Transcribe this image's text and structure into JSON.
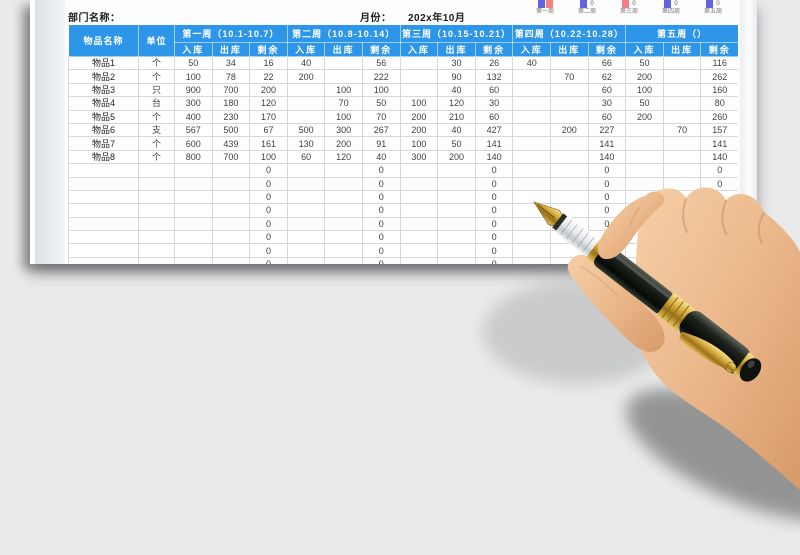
{
  "header": {
    "dept_label": "部门名称：",
    "month_label": "月份：",
    "month_value": "202x年10月"
  },
  "mini_chart": {
    "colors": {
      "blue": "#6163e2",
      "red": "#f38080"
    },
    "groups": [
      {
        "label": "第一周",
        "bars": [
          "blue",
          "red"
        ],
        "zero": ""
      },
      {
        "label": "第二周",
        "bars": [
          "blue"
        ],
        "zero": "0"
      },
      {
        "label": "第三周",
        "bars": [
          "red"
        ],
        "zero": "0"
      },
      {
        "label": "第四周",
        "bars": [
          "blue"
        ],
        "zero": "0"
      },
      {
        "label": "第五周",
        "bars": [
          "blue"
        ],
        "zero": "0"
      }
    ]
  },
  "table": {
    "header_color": "#2e96e8",
    "col_item": "物品名称",
    "col_unit": "单位",
    "weeks": [
      "第一周（10.1-10.7）",
      "第二周（10.8-10.14）",
      "第三周（10.15-10.21）",
      "第四周（10.22-10.28）",
      "第五周（）"
    ],
    "subcols": [
      "入库",
      "出库",
      "剩余"
    ],
    "rows": [
      {
        "name": "物品1",
        "unit": "个",
        "values": [
          "50",
          "34",
          "16",
          "40",
          "",
          "56",
          "",
          "30",
          "26",
          "40",
          "",
          "66",
          "50",
          "",
          "116"
        ]
      },
      {
        "name": "物品2",
        "unit": "个",
        "values": [
          "100",
          "78",
          "22",
          "200",
          "",
          "222",
          "",
          "90",
          "132",
          "",
          "70",
          "62",
          "200",
          "",
          "262"
        ]
      },
      {
        "name": "物品3",
        "unit": "只",
        "values": [
          "900",
          "700",
          "200",
          "",
          "100",
          "100",
          "",
          "40",
          "60",
          "",
          "",
          "60",
          "100",
          "",
          "160"
        ]
      },
      {
        "name": "物品4",
        "unit": "台",
        "values": [
          "300",
          "180",
          "120",
          "",
          "70",
          "50",
          "100",
          "120",
          "30",
          "",
          "",
          "30",
          "50",
          "",
          "80"
        ]
      },
      {
        "name": "物品5",
        "unit": "个",
        "values": [
          "400",
          "230",
          "170",
          "",
          "100",
          "70",
          "200",
          "210",
          "60",
          "",
          "",
          "60",
          "200",
          "",
          "260"
        ]
      },
      {
        "name": "物品6",
        "unit": "支",
        "values": [
          "567",
          "500",
          "67",
          "500",
          "300",
          "267",
          "200",
          "40",
          "427",
          "",
          "200",
          "227",
          "",
          "70",
          "157"
        ]
      },
      {
        "name": "物品7",
        "unit": "个",
        "values": [
          "600",
          "439",
          "161",
          "130",
          "200",
          "91",
          "100",
          "50",
          "141",
          "",
          "",
          "141",
          "",
          "",
          "141"
        ]
      },
      {
        "name": "物品8",
        "unit": "个",
        "values": [
          "800",
          "700",
          "100",
          "60",
          "120",
          "40",
          "300",
          "200",
          "140",
          "",
          "",
          "140",
          "",
          "",
          "140"
        ]
      }
    ],
    "empty_row_values": [
      "",
      "",
      "0",
      "",
      "",
      "0",
      "",
      "",
      "0",
      "",
      "",
      "0",
      "",
      "",
      "0"
    ],
    "empty_row_count": 8
  }
}
